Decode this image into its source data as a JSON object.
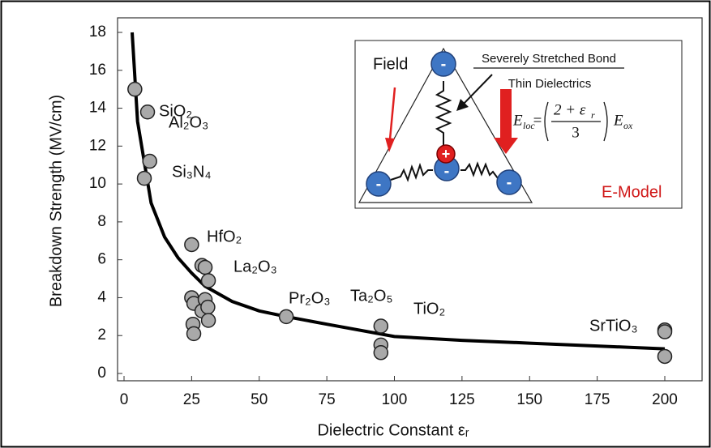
{
  "chart_data": {
    "type": "scatter",
    "y_label": "Breakdown Strength (MV/cm)",
    "x_label": "Dielectric Constant εᵣ",
    "xlim": [
      0,
      200
    ],
    "ylim": [
      0,
      18
    ],
    "xticks": [
      0,
      25,
      50,
      75,
      100,
      125,
      150,
      175,
      200
    ],
    "yticks": [
      0,
      2,
      4,
      6,
      8,
      10,
      12,
      14,
      16,
      18
    ],
    "series": [
      {
        "color": "#a9a9a9",
        "x": [
          4,
          8.7,
          9.5,
          7.5,
          25,
          28.8,
          30,
          31.2,
          25,
          25.8,
          28.8,
          30,
          31,
          31.2,
          25.5,
          25.8,
          60,
          95,
          95,
          95,
          200,
          200,
          200
        ],
        "values": [
          15,
          13.8,
          11.2,
          10.3,
          6.8,
          5.7,
          5.6,
          4.9,
          4.0,
          3.7,
          3.3,
          3.9,
          3.5,
          2.8,
          2.6,
          2.1,
          3.0,
          2.5,
          1.5,
          1.1,
          2.3,
          2.2,
          0.9
        ]
      }
    ],
    "fit": {
      "color": "#000000",
      "x": [
        3,
        5,
        10,
        15,
        20,
        25,
        30,
        40,
        50,
        60,
        75,
        100,
        125,
        150,
        175,
        200
      ],
      "values": [
        18,
        13.3,
        9.0,
        7.2,
        6.1,
        5.3,
        4.6,
        3.8,
        3.3,
        3.0,
        2.6,
        1.95,
        1.75,
        1.6,
        1.45,
        1.3
      ]
    },
    "annotations": [
      "SiO₂",
      "Al₂O₃",
      "Si₃N₄",
      "HfO₂",
      "La₂O₃",
      "Pr₂O₃",
      "Ta₂O₅",
      "TiO₂",
      "SrTiO₃"
    ],
    "inset": {
      "field": "Field",
      "bond": "Severely Stretched Bond",
      "thin": "Thin Dielectrics",
      "model": "E-Model",
      "negative": "-",
      "positive": "+",
      "formula": {
        "lhs": "E",
        "lhs_sub": "loc",
        "equals": "=",
        "num": "2 + ε",
        "num_sub": "r",
        "den": "3",
        "rhs": "E",
        "rhs_sub": "ox"
      }
    }
  }
}
